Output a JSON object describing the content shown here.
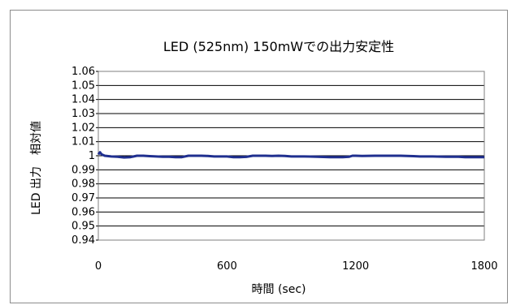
{
  "chart_data": {
    "type": "line",
    "title": "LED (525nm) 150mWでの出力安定性",
    "xlabel": "時間 (sec)",
    "ylabel": "LED 出力　相対値",
    "xlim": [
      0,
      1800
    ],
    "ylim": [
      0.94,
      1.06
    ],
    "xticks": [
      0,
      600,
      1200,
      1800
    ],
    "yticks": [
      1.06,
      1.05,
      1.04,
      1.03,
      1.02,
      1.01,
      1,
      0.99,
      0.98,
      0.97,
      0.96,
      0.95,
      0.94
    ],
    "grid": "horizontal",
    "line_color": "#1f2f8f",
    "series": [
      {
        "x": [
          0,
          8,
          15,
          30,
          60,
          90,
          120,
          150,
          165,
          180,
          210,
          240,
          270,
          300,
          330,
          360,
          390,
          420,
          450,
          480,
          510,
          540,
          600,
          630,
          660,
          690,
          720,
          750,
          780,
          810,
          840,
          870,
          900,
          960,
          1020,
          1080,
          1110,
          1140,
          1170,
          1185,
          1200,
          1230,
          1290,
          1350,
          1410,
          1440,
          1470,
          1500,
          1560,
          1620,
          1680,
          1710,
          1740,
          1770,
          1800
        ],
        "values": [
          1.001,
          1.0025,
          1.001,
          1.0,
          0.9995,
          0.9993,
          0.9988,
          0.999,
          0.9995,
          1.0,
          1.0,
          0.9997,
          0.9995,
          0.9993,
          0.9993,
          0.999,
          0.999,
          1.0,
          1.0,
          1.0,
          0.9998,
          0.9995,
          0.9995,
          0.999,
          0.999,
          0.9992,
          1.0,
          1.0,
          1.0,
          0.9998,
          1.0,
          0.9998,
          0.9995,
          0.9995,
          0.9993,
          0.999,
          0.999,
          0.999,
          0.9993,
          1.0,
          1.0,
          0.9999,
          1.0,
          1.0,
          1.0,
          0.9998,
          0.9997,
          0.9995,
          0.9995,
          0.9993,
          0.9993,
          0.999,
          0.999,
          0.999,
          0.999
        ]
      }
    ]
  }
}
